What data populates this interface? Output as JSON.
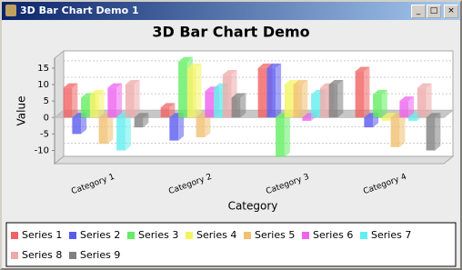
{
  "window": {
    "title": "3D Bar Chart Demo 1"
  },
  "chart_data": {
    "type": "bar3d",
    "title": "3D Bar Chart Demo",
    "x_label": "Category",
    "y_label": "Value",
    "categories": [
      "Category 1",
      "Category 2",
      "Category 3",
      "Category 4"
    ],
    "series": [
      {
        "name": "Series 1",
        "color": "#f06262",
        "values": [
          9,
          3,
          15,
          14
        ]
      },
      {
        "name": "Series 2",
        "color": "#5a5af0",
        "values": [
          -5,
          -7,
          15,
          -3
        ]
      },
      {
        "name": "Series 3",
        "color": "#62ee62",
        "values": [
          6,
          17,
          -12,
          7
        ]
      },
      {
        "name": "Series 4",
        "color": "#f4f460",
        "values": [
          7,
          15,
          10,
          -1
        ]
      },
      {
        "name": "Series 5",
        "color": "#f0c070",
        "values": [
          -8,
          -6,
          10,
          -9
        ]
      },
      {
        "name": "Series 6",
        "color": "#ee62ee",
        "values": [
          9,
          8,
          -1,
          5
        ]
      },
      {
        "name": "Series 7",
        "color": "#62eeee",
        "values": [
          -10,
          9,
          7,
          -1
        ]
      },
      {
        "name": "Series 8",
        "color": "#eeaaaa",
        "values": [
          10,
          13,
          9,
          9
        ]
      },
      {
        "name": "Series 9",
        "color": "#808080",
        "values": [
          -3,
          6,
          10,
          -10
        ]
      }
    ],
    "ylim": [
      -14,
      18
    ],
    "yticks": [
      -10,
      -5,
      0,
      5,
      10,
      15
    ],
    "grid": true,
    "legend": "bottom"
  }
}
